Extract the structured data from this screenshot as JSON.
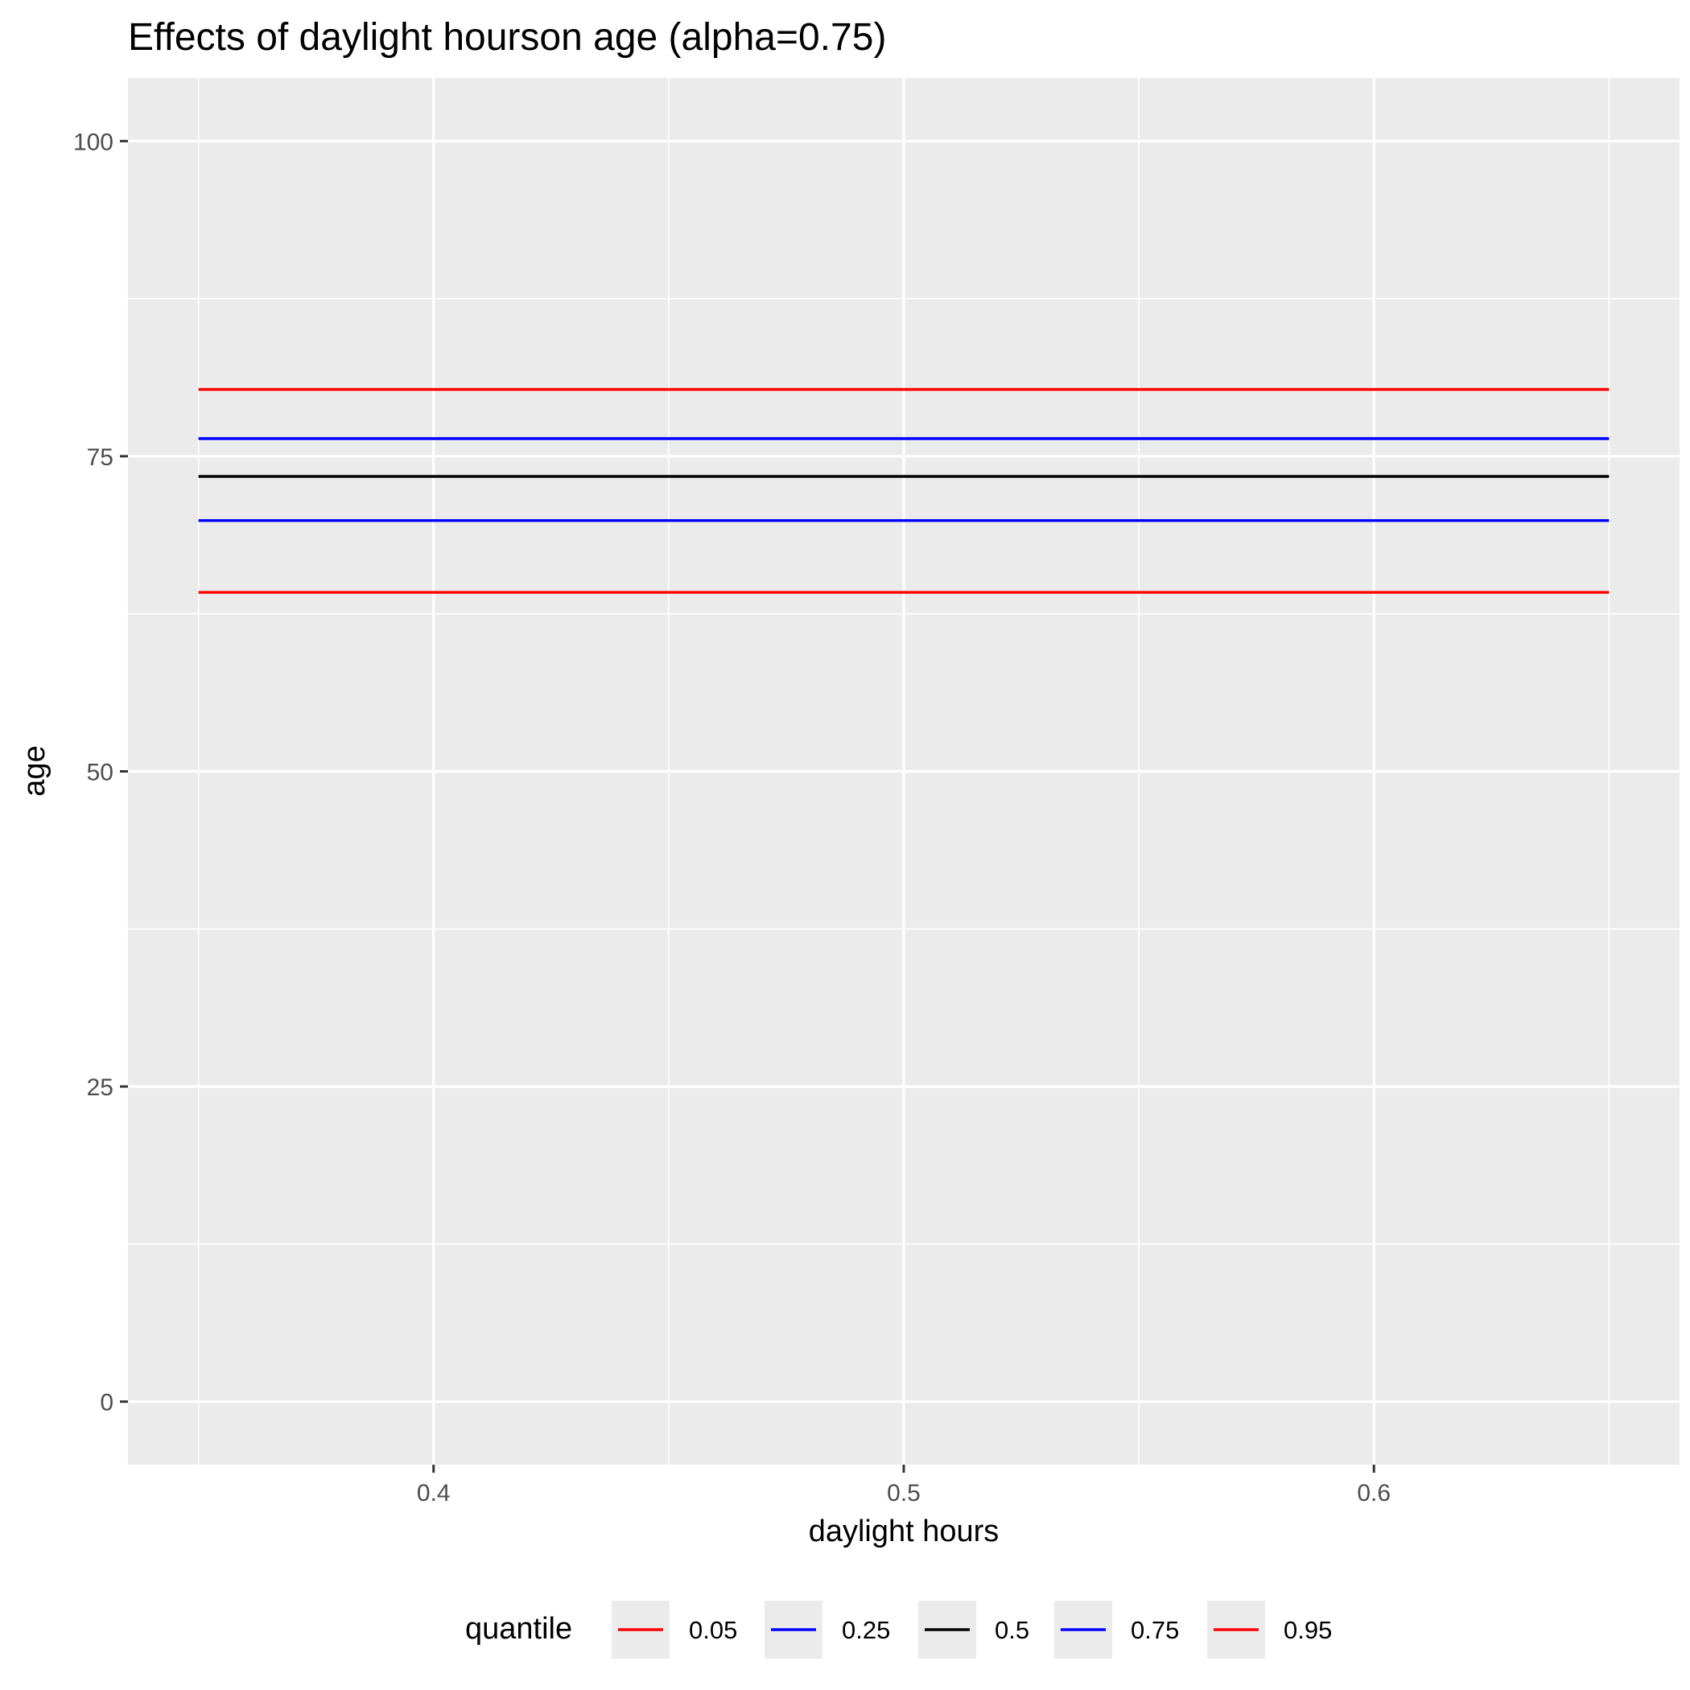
{
  "chart_data": {
    "type": "line",
    "title": "Effects of daylight hourson age (alpha=0.75)",
    "xlabel": "daylight hours",
    "ylabel": "age",
    "xlim": [
      0.335,
      0.665
    ],
    "ylim": [
      -5,
      105
    ],
    "x_ticks": [
      0.4,
      0.5,
      0.6
    ],
    "x_tick_labels": [
      "0.4",
      "0.5",
      "0.6"
    ],
    "x_minor_ticks": [
      0.35,
      0.45,
      0.55,
      0.65
    ],
    "y_ticks": [
      0,
      25,
      50,
      75,
      100
    ],
    "y_tick_labels": [
      "0",
      "25",
      "50",
      "75",
      "100"
    ],
    "y_minor_ticks": [
      12.5,
      37.5,
      62.5,
      87.5
    ],
    "grid": true,
    "legend": {
      "title": "quantile",
      "position": "bottom"
    },
    "series": [
      {
        "name": "0.05",
        "color": "#ff0000",
        "x": [
          0.35,
          0.65
        ],
        "y": [
          64.2,
          64.2
        ]
      },
      {
        "name": "0.25",
        "color": "#0000ff",
        "x": [
          0.35,
          0.65
        ],
        "y": [
          69.9,
          69.9
        ]
      },
      {
        "name": "0.5",
        "color": "#000000",
        "x": [
          0.35,
          0.65
        ],
        "y": [
          73.4,
          73.4
        ]
      },
      {
        "name": "0.75",
        "color": "#0000ff",
        "x": [
          0.35,
          0.65
        ],
        "y": [
          76.4,
          76.4
        ]
      },
      {
        "name": "0.95",
        "color": "#ff0000",
        "x": [
          0.35,
          0.65
        ],
        "y": [
          80.3,
          80.3
        ]
      }
    ]
  }
}
